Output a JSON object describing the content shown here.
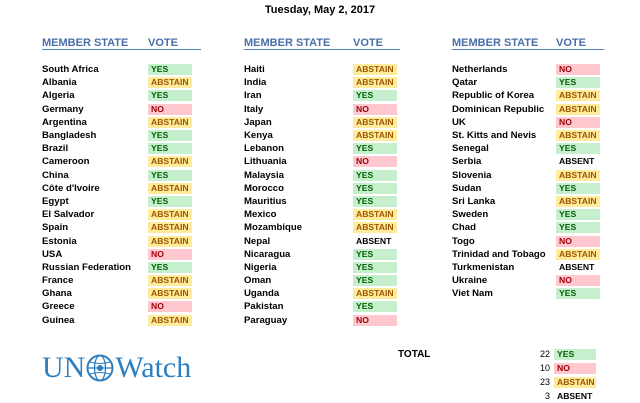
{
  "date": "Tuesday, May 2, 2017",
  "headers": {
    "member_state": "MEMBER STATE",
    "vote": "VOTE"
  },
  "columns": [
    [
      [
        "South Africa",
        "YES"
      ],
      [
        "Albania",
        "ABSTAIN"
      ],
      [
        "Algeria",
        "YES"
      ],
      [
        "Germany",
        "NO"
      ],
      [
        "Argentina",
        "ABSTAIN"
      ],
      [
        "Bangladesh",
        "YES"
      ],
      [
        "Brazil",
        "YES"
      ],
      [
        "Cameroon",
        "ABSTAIN"
      ],
      [
        "China",
        "YES"
      ],
      [
        "Côte d'Ivoire",
        "ABSTAIN"
      ],
      [
        "Egypt",
        "YES"
      ],
      [
        "El Salvador",
        "ABSTAIN"
      ],
      [
        "Spain",
        "ABSTAIN"
      ],
      [
        "Estonia",
        "ABSTAIN"
      ],
      [
        "USA",
        "NO"
      ],
      [
        "Russian Federation",
        "YES"
      ],
      [
        "France",
        "ABSTAIN"
      ],
      [
        "Ghana",
        "ABSTAIN"
      ],
      [
        "Greece",
        "NO"
      ],
      [
        "Guinea",
        "ABSTAIN"
      ]
    ],
    [
      [
        "Haiti",
        "ABSTAIN"
      ],
      [
        "India",
        "ABSTAIN"
      ],
      [
        "Iran",
        "YES"
      ],
      [
        "Italy",
        "NO"
      ],
      [
        "Japan",
        "ABSTAIN"
      ],
      [
        "Kenya",
        "ABSTAIN"
      ],
      [
        "Lebanon",
        "YES"
      ],
      [
        "Lithuania",
        "NO"
      ],
      [
        "Malaysia",
        "YES"
      ],
      [
        "Morocco",
        "YES"
      ],
      [
        "Mauritius",
        "YES"
      ],
      [
        "Mexico",
        "ABSTAIN"
      ],
      [
        "Mozambique",
        "ABSTAIN"
      ],
      [
        "Nepal",
        "ABSENT"
      ],
      [
        "Nicaragua",
        "YES"
      ],
      [
        "Nigeria",
        "YES"
      ],
      [
        "Oman",
        "YES"
      ],
      [
        "Uganda",
        "ABSTAIN"
      ],
      [
        "Pakistan",
        "YES"
      ],
      [
        "Paraguay",
        "NO"
      ]
    ],
    [
      [
        "Netherlands",
        "NO"
      ],
      [
        "Qatar",
        "YES"
      ],
      [
        "Republic of Korea",
        "ABSTAIN"
      ],
      [
        "Dominican Republic",
        "ABSTAIN"
      ],
      [
        "UK",
        "NO"
      ],
      [
        "St. Kitts and Nevis",
        "ABSTAIN"
      ],
      [
        "Senegal",
        "YES"
      ],
      [
        "Serbia",
        "ABSENT"
      ],
      [
        "Slovenia",
        "ABSTAIN"
      ],
      [
        "Sudan",
        "YES"
      ],
      [
        "Sri Lanka",
        "ABSTAIN"
      ],
      [
        "Sweden",
        "YES"
      ],
      [
        "Chad",
        "YES"
      ],
      [
        "Togo",
        "NO"
      ],
      [
        "Trinidad and Tobago",
        "ABSTAIN"
      ],
      [
        "Turkmenistan",
        "ABSENT"
      ],
      [
        "Ukraine",
        "NO"
      ],
      [
        "Viet Nam",
        "YES"
      ]
    ]
  ],
  "total_label": "TOTAL",
  "totals": [
    {
      "count": "22",
      "vote": "YES"
    },
    {
      "count": "10",
      "vote": "NO"
    },
    {
      "count": "23",
      "vote": "ABSTAIN"
    },
    {
      "count": "3",
      "vote": "ABSENT"
    }
  ],
  "logo": {
    "left": "UN",
    "right": "Watch",
    "icon": "globe-icon",
    "color": "#2d7fbf"
  },
  "colors": {
    "yes_bg": "#c6efce",
    "yes_fg": "#006100",
    "no_bg": "#ffc7ce",
    "no_fg": "#9c0006",
    "abstain_bg": "#ffeb9c",
    "abstain_fg": "#9c5700",
    "header": "#4a6fa8"
  }
}
